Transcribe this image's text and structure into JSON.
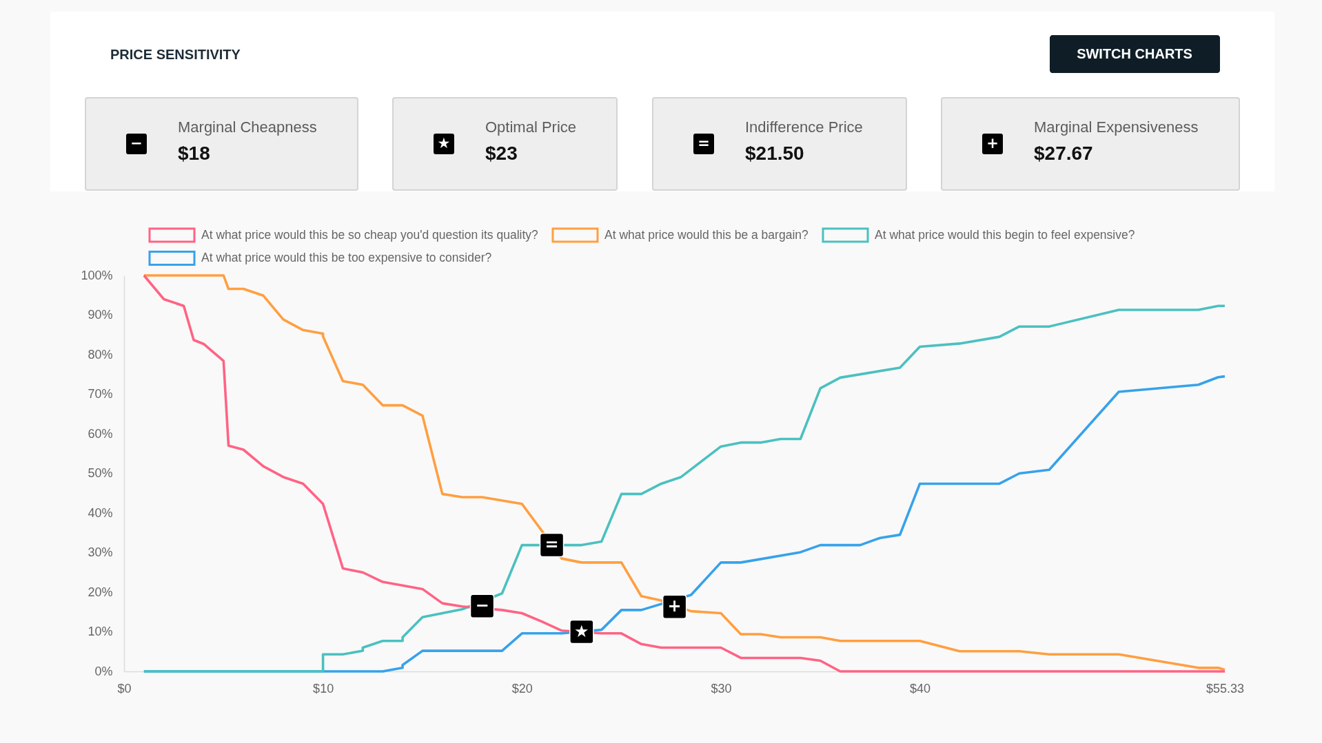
{
  "chart_data": [
    {
      "type": "other",
      "title": "PRICE SENSITIVITY",
      "annotations": [
        "SWITCH CHARTS",
        "−",
        "Marginal Cheapness",
        "$18",
        "★",
        "Optimal Price",
        "$23",
        "=",
        "Indifference Price",
        "$21.50",
        "+",
        "Marginal Expensiveness",
        "$27.67"
      ]
    },
    {
      "type": "line",
      "xlim": [
        0,
        55.33
      ],
      "xticks": [
        {
          "value": 0,
          "label": "$0"
        },
        {
          "value": 10,
          "label": "$10"
        },
        {
          "value": 20,
          "label": "$20"
        },
        {
          "value": 30,
          "label": "$30"
        },
        {
          "value": 40,
          "label": "$40"
        },
        {
          "value": 55.33,
          "label": "$55.33"
        }
      ],
      "ylim": [
        0,
        100
      ],
      "yticks": [
        {
          "value": 0,
          "label": "0%"
        },
        {
          "value": 10,
          "label": "10%"
        },
        {
          "value": 20,
          "label": "20%"
        },
        {
          "value": 30,
          "label": "30%"
        },
        {
          "value": 40,
          "label": "40%"
        },
        {
          "value": 50,
          "label": "50%"
        },
        {
          "value": 60,
          "label": "60%"
        },
        {
          "value": 70,
          "label": "70%"
        },
        {
          "value": 80,
          "label": "80%"
        },
        {
          "value": 90,
          "label": "90%"
        },
        {
          "value": 100,
          "label": "100%"
        }
      ],
      "grid": false,
      "legend": "top",
      "line_style": "solid",
      "series": [
        {
          "name": "At what price would this be so cheap you'd question its quality?",
          "color": "#ff6384",
          "x": [
            1,
            2,
            3,
            3.5,
            4,
            5,
            5.25,
            6,
            7,
            8,
            9,
            10,
            11,
            12,
            13,
            14,
            15,
            16,
            17,
            19,
            20,
            21,
            22,
            24,
            25,
            26,
            27,
            30,
            31,
            34,
            35,
            36,
            55.33
          ],
          "values": [
            100,
            94.0,
            92.3,
            83.7,
            82.7,
            78.4,
            57.0,
            56.0,
            51.8,
            49.1,
            47.4,
            42.3,
            26.0,
            25.0,
            22.6,
            21.7,
            20.8,
            17.2,
            16.4,
            15.5,
            14.7,
            12.6,
            10.3,
            9.6,
            9.6,
            6.9,
            6.0,
            6.0,
            3.4,
            3.4,
            2.7,
            0,
            0
          ]
        },
        {
          "name": "At what price would this be a bargain?",
          "color": "#ff9f40",
          "x": [
            1,
            5,
            5.25,
            6,
            7,
            8,
            9,
            10,
            10,
            11,
            12,
            13,
            14,
            15,
            16,
            17,
            18,
            20,
            21,
            22,
            23,
            25,
            26,
            27,
            28.5,
            30,
            31,
            32,
            33,
            35,
            36,
            40,
            42,
            45,
            46.5,
            50,
            54,
            55,
            55.33
          ],
          "values": [
            100,
            100,
            96.6,
            96.6,
            94.9,
            88.9,
            86.2,
            85.3,
            84.6,
            73.3,
            72.4,
            67.2,
            67.2,
            64.6,
            44.8,
            44.0,
            44.0,
            42.3,
            35.5,
            28.5,
            27.5,
            27.5,
            19.0,
            17.9,
            15.2,
            14.7,
            9.4,
            9.4,
            8.6,
            8.6,
            7.7,
            7.7,
            5.1,
            5.1,
            4.3,
            4.3,
            0.9,
            0.9,
            0.4
          ]
        },
        {
          "name": "At what price would this begin to feel expensive?",
          "color": "#4bc0c0",
          "x": [
            1,
            10,
            10,
            11,
            12,
            12,
            13,
            14,
            14,
            15,
            17,
            19,
            20,
            23,
            24,
            25,
            26,
            27,
            28,
            30,
            31,
            32,
            33,
            34,
            35,
            36,
            39,
            40,
            42,
            44,
            45,
            46.5,
            50,
            54,
            55,
            55.33
          ],
          "values": [
            0,
            0,
            4.3,
            4.3,
            5.2,
            6.0,
            7.7,
            7.7,
            8.6,
            13.7,
            15.7,
            19.7,
            31.9,
            31.9,
            32.8,
            44.8,
            44.8,
            47.4,
            49.1,
            56.8,
            57.8,
            57.8,
            58.7,
            58.7,
            71.5,
            74.2,
            76.7,
            82.0,
            82.8,
            84.5,
            87.1,
            87.1,
            91.3,
            91.3,
            92.3,
            92.3
          ]
        },
        {
          "name": "At what price would this be too expensive to consider?",
          "color": "#36a2eb",
          "x": [
            1,
            13,
            14,
            14,
            15,
            19,
            20,
            22,
            24,
            25,
            26,
            28.5,
            30,
            31,
            34,
            35,
            37,
            38,
            39,
            40,
            44,
            45,
            46.5,
            50,
            54,
            55,
            55.33
          ],
          "values": [
            0,
            0,
            0.9,
            1.6,
            5.2,
            5.2,
            9.6,
            9.6,
            10.5,
            15.5,
            15.5,
            19.3,
            27.5,
            27.5,
            30.1,
            31.9,
            31.9,
            33.7,
            34.5,
            47.4,
            47.4,
            50.0,
            50.9,
            70.6,
            72.4,
            74.3,
            74.5
          ]
        }
      ],
      "annotations": [
        {
          "text": "−",
          "x": 18,
          "y": 16.5
        },
        {
          "text": "★",
          "x": 23,
          "y": 10
        },
        {
          "text": "=",
          "x": 21.5,
          "y": 31.9
        },
        {
          "text": "+",
          "x": 27.67,
          "y": 16.3
        }
      ]
    }
  ]
}
